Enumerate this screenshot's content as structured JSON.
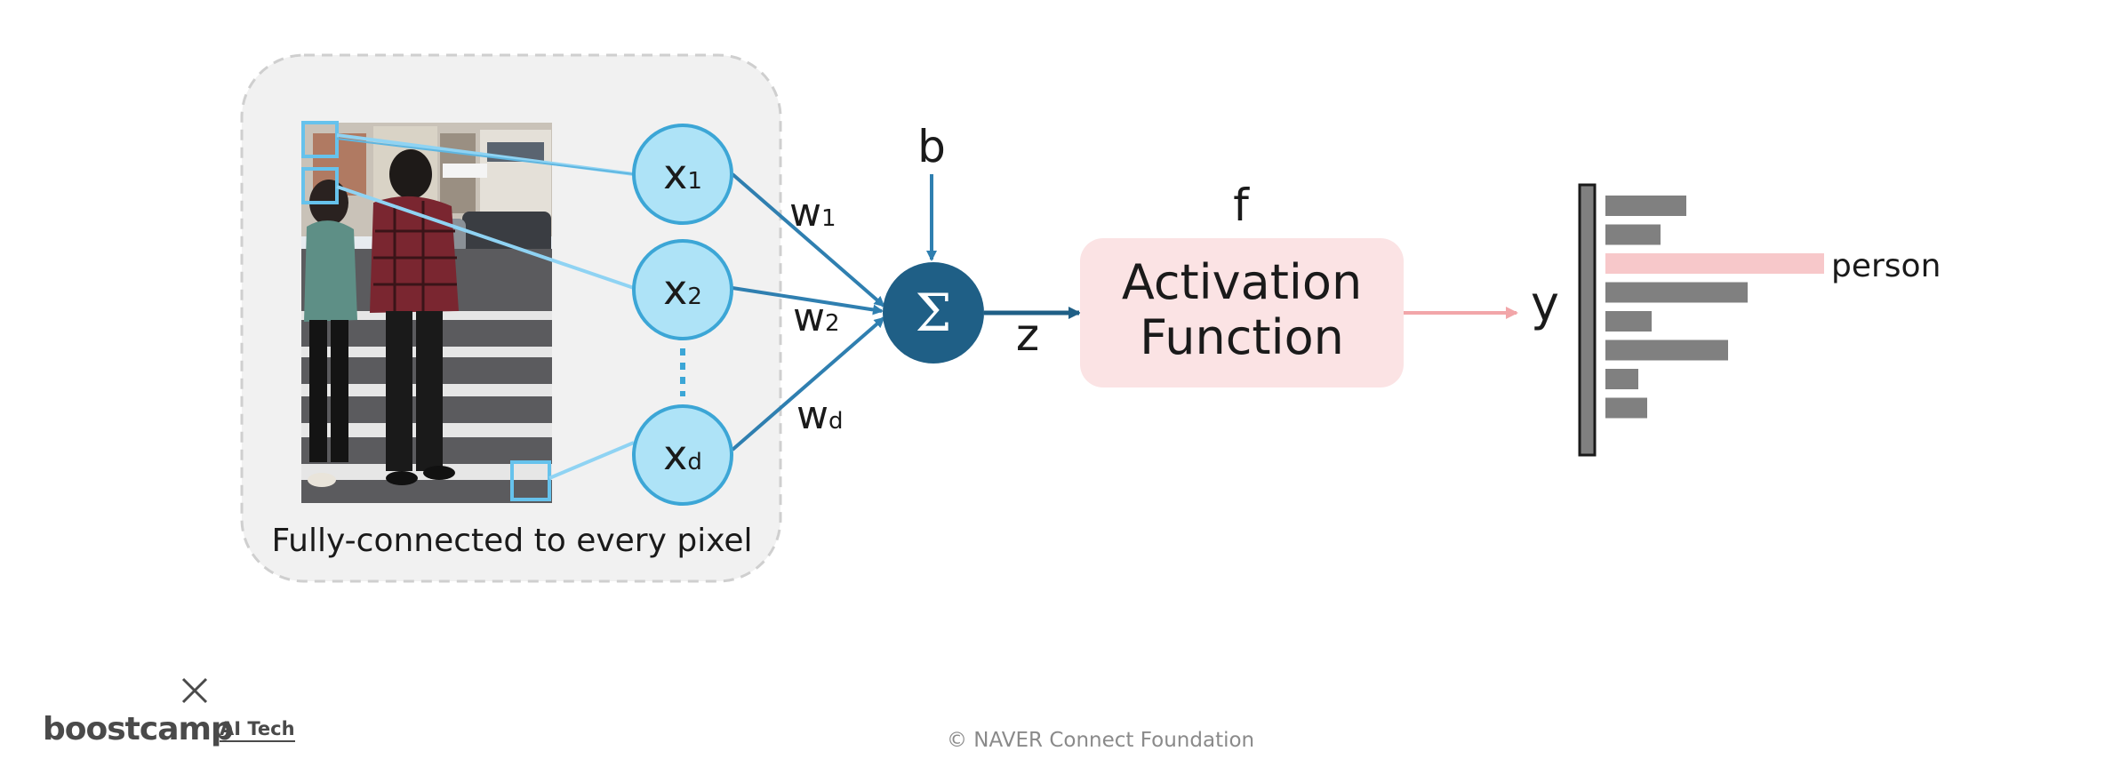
{
  "diagram": {
    "inputs": [
      {
        "base": "x",
        "sub": "1"
      },
      {
        "base": "x",
        "sub": "2"
      },
      {
        "base": "x",
        "sub": "d"
      }
    ],
    "weights": [
      {
        "base": "w",
        "sub": "1"
      },
      {
        "base": "w",
        "sub": "2"
      },
      {
        "base": "w",
        "sub": "d"
      }
    ],
    "bias_label": "b",
    "sum_symbol": "Σ",
    "z_label": "z",
    "f_label": "f",
    "activation_line1": "Activation",
    "activation_line2": "Function",
    "y_label": "y",
    "caption": "Fully-connected to every pixel",
    "output_highlight_label": "person",
    "output_bars": [
      0.37,
      0.25,
      1.0,
      0.65,
      0.21,
      0.56,
      0.15,
      0.19
    ],
    "highlight_index": 2
  },
  "colors": {
    "input_fill": "#aee3f7",
    "input_stroke": "#3ca6d6",
    "sum_fill": "#1f5f86",
    "activation_fill": "#fbe3e4",
    "highlight_bar": "#f7c8ca",
    "bar": "#808080",
    "group_bg": "#f1f1f1"
  },
  "footer": {
    "copyright": "© NAVER Connect Foundation",
    "brand_main": "boostcamp",
    "brand_sub": "AI Tech"
  }
}
